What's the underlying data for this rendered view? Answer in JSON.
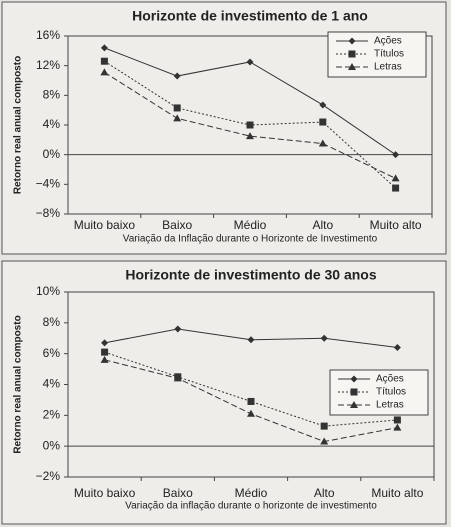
{
  "chart_data": [
    {
      "type": "line",
      "title": "Horizonte de investimento de 1 ano",
      "y_label": "Retorno real anual composto",
      "x_label": "Variação da Inflação durante o Horizonte de Investimento",
      "categories": [
        "Muito baixo",
        "Baixo",
        "Médio",
        "Alto",
        "Muito alto"
      ],
      "series": [
        {
          "name": "Ações",
          "color": "#333333",
          "marker": "diamond",
          "dash": "solid",
          "values": [
            14.4,
            10.6,
            12.5,
            6.7,
            0.0
          ]
        },
        {
          "name": "Títulos",
          "color": "#333333",
          "marker": "square",
          "dash": "dotted",
          "values": [
            12.6,
            6.3,
            4.0,
            4.4,
            -4.5
          ]
        },
        {
          "name": "Letras",
          "color": "#333333",
          "marker": "triangle",
          "dash": "dashed",
          "values": [
            11.1,
            4.9,
            2.5,
            1.5,
            -3.2
          ]
        }
      ],
      "ylim": [
        -8,
        16
      ],
      "yticks": [
        {
          "value": -8,
          "label": "−8%"
        },
        {
          "value": -4,
          "label": "−4%"
        },
        {
          "value": 0,
          "label": "0%"
        },
        {
          "value": 4,
          "label": "4%"
        },
        {
          "value": 8,
          "label": "8%"
        },
        {
          "value": 12,
          "label": "12%"
        },
        {
          "value": 16,
          "label": "16%"
        }
      ],
      "legend": "upper right"
    },
    {
      "type": "line",
      "title": "Horizonte de investimento de 30 anos",
      "y_label": "Retorno real anual composto",
      "x_label": "Variação da inflação durante o horizonte de investimento",
      "categories": [
        "Muito baixo",
        "Baixo",
        "Médio",
        "Alto",
        "Muito alto"
      ],
      "series": [
        {
          "name": "Ações",
          "color": "#333333",
          "marker": "diamond",
          "dash": "solid",
          "values": [
            6.7,
            7.6,
            6.9,
            7.0,
            6.4
          ]
        },
        {
          "name": "Títulos",
          "color": "#333333",
          "marker": "square",
          "dash": "dotted",
          "values": [
            6.1,
            4.5,
            2.9,
            1.3,
            1.7
          ]
        },
        {
          "name": "Letras",
          "color": "#333333",
          "marker": "triangle",
          "dash": "dashed",
          "values": [
            5.6,
            4.4,
            2.1,
            0.3,
            1.2
          ]
        }
      ],
      "ylim": [
        -2,
        10
      ],
      "yticks": [
        {
          "value": -2,
          "label": "−2%"
        },
        {
          "value": 0,
          "label": "0%"
        },
        {
          "value": 2,
          "label": "2%"
        },
        {
          "value": 4,
          "label": "4%"
        },
        {
          "value": 6,
          "label": "6%"
        },
        {
          "value": 8,
          "label": "8%"
        },
        {
          "value": 10,
          "label": "10%"
        }
      ],
      "legend": "center right"
    }
  ]
}
